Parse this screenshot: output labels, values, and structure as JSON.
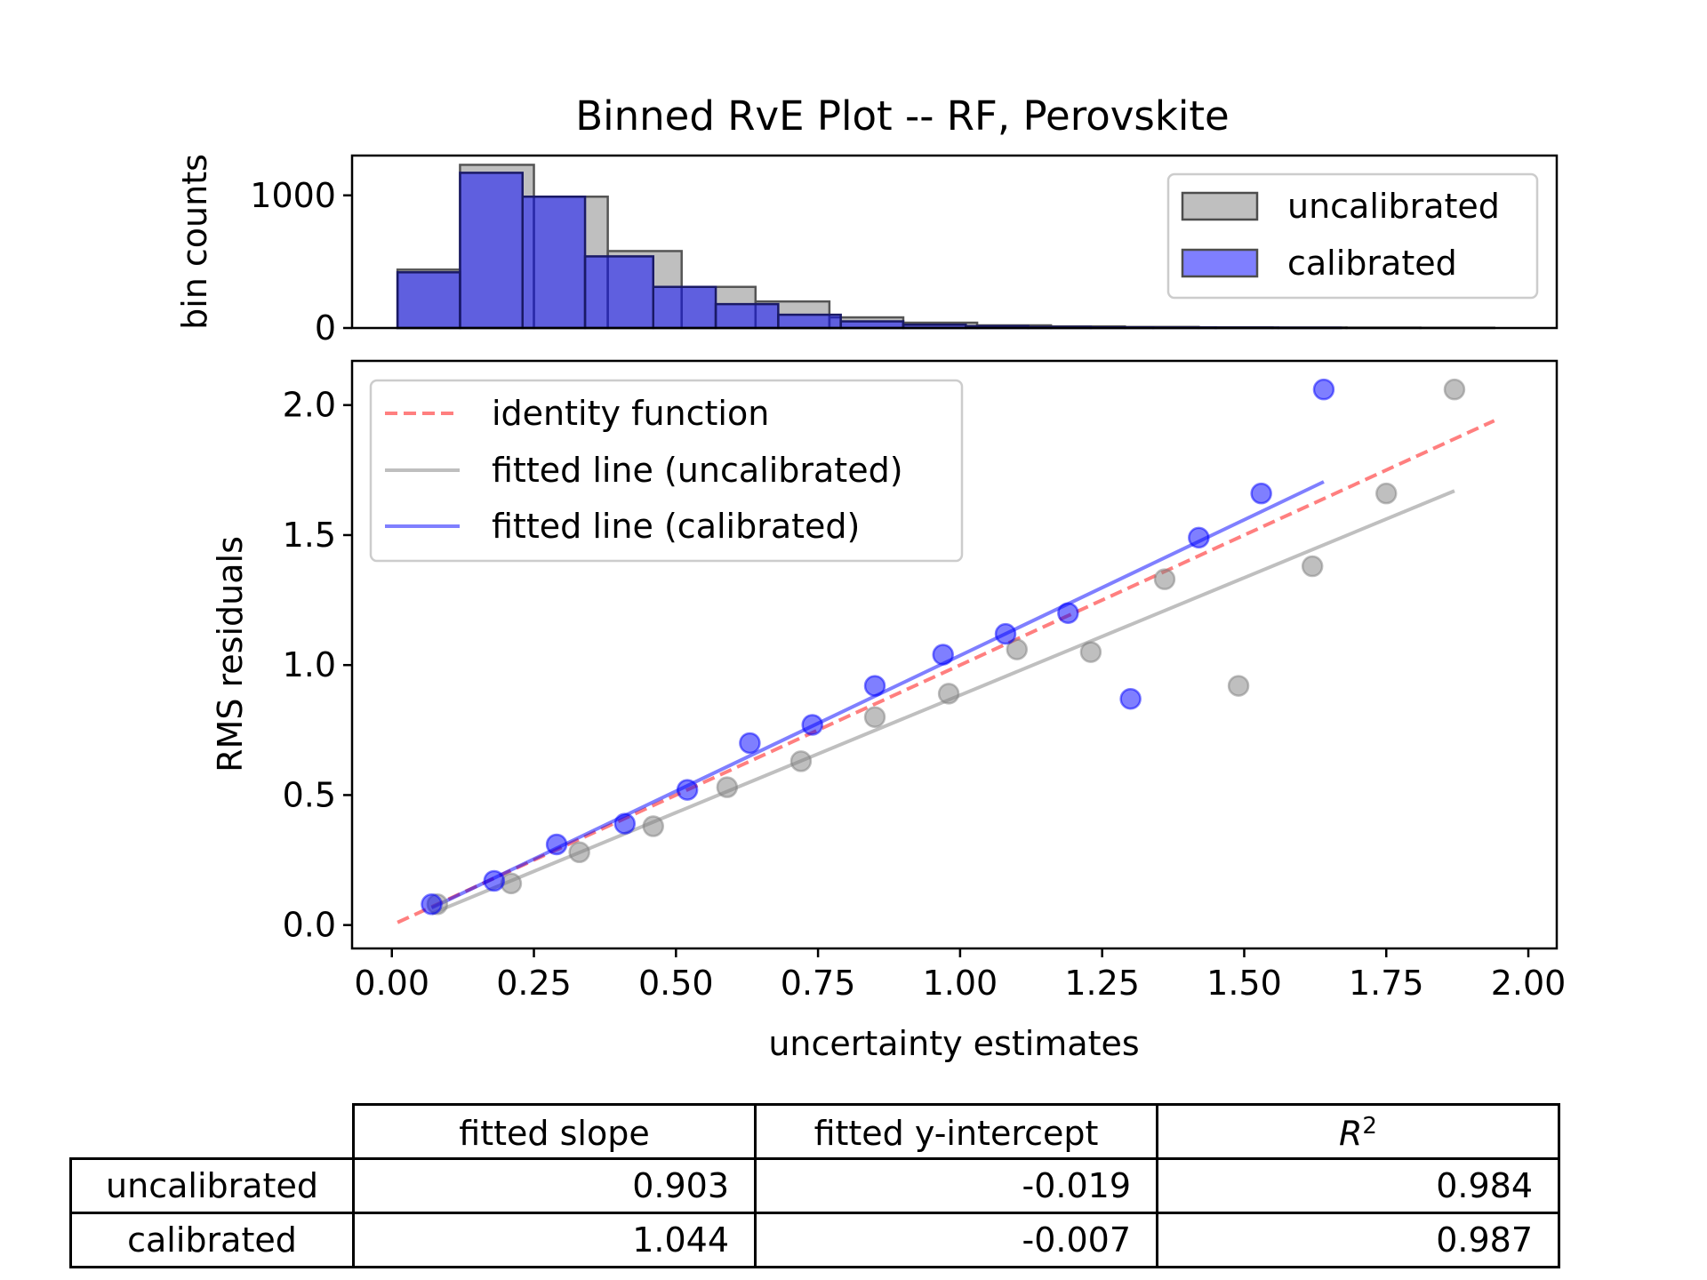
{
  "title": "Binned RvE Plot -- RF, Perovskite",
  "hist": {
    "ylabel": "bin counts",
    "yticks": [
      "0",
      "1000"
    ],
    "legend": {
      "location": "upper right",
      "entries": [
        "uncalibrated",
        "calibrated"
      ]
    }
  },
  "main": {
    "xlabel": "uncertainty estimates",
    "ylabel": "RMS residuals",
    "xticks": [
      "0.00",
      "0.25",
      "0.50",
      "0.75",
      "1.00",
      "1.25",
      "1.50",
      "1.75",
      "2.00"
    ],
    "yticks": [
      "0.0",
      "0.5",
      "1.0",
      "1.5",
      "2.0"
    ],
    "legend": {
      "location": "upper left",
      "entries": [
        "identity function",
        "fitted line (uncalibrated)",
        "fitted line (calibrated)"
      ]
    }
  },
  "table": {
    "columns": [
      "fitted slope",
      "fitted y-intercept",
      "R"
    ],
    "r2_superscript": "2",
    "rows": [
      {
        "label": "uncalibrated",
        "slope": "0.903",
        "intercept": "-0.019",
        "r2": "0.984"
      },
      {
        "label": "calibrated",
        "slope": "1.044",
        "intercept": "-0.007",
        "r2": "0.987"
      }
    ]
  },
  "colors": {
    "uncalibrated": "#808080",
    "calibrated": "#0000ff",
    "identity": "#ff0000"
  },
  "chart_data": [
    {
      "type": "bar",
      "subtype": "histogram",
      "ylabel": "bin counts",
      "ylim": [
        0,
        1300
      ],
      "series": [
        {
          "name": "uncalibrated",
          "bins": [
            [
              0.01,
              0.12,
              440
            ],
            [
              0.12,
              0.25,
              1230
            ],
            [
              0.25,
              0.38,
              990
            ],
            [
              0.38,
              0.51,
              580
            ],
            [
              0.51,
              0.64,
              310
            ],
            [
              0.64,
              0.77,
              200
            ],
            [
              0.77,
              0.9,
              80
            ],
            [
              0.9,
              1.03,
              40
            ],
            [
              1.03,
              1.16,
              20
            ],
            [
              1.16,
              1.29,
              12
            ],
            [
              1.29,
              1.42,
              8
            ],
            [
              1.42,
              1.55,
              5
            ],
            [
              1.55,
              1.68,
              4
            ],
            [
              1.68,
              1.81,
              3
            ],
            [
              1.81,
              1.94,
              2
            ]
          ]
        },
        {
          "name": "calibrated",
          "bins": [
            [
              0.01,
              0.12,
              420
            ],
            [
              0.12,
              0.23,
              1170
            ],
            [
              0.23,
              0.34,
              990
            ],
            [
              0.34,
              0.46,
              540
            ],
            [
              0.46,
              0.57,
              310
            ],
            [
              0.57,
              0.68,
              180
            ],
            [
              0.68,
              0.79,
              100
            ],
            [
              0.79,
              0.9,
              50
            ],
            [
              0.9,
              1.01,
              25
            ],
            [
              1.01,
              1.12,
              14
            ],
            [
              1.12,
              1.23,
              8
            ],
            [
              1.23,
              1.34,
              5
            ],
            [
              1.34,
              1.45,
              4
            ],
            [
              1.45,
              1.56,
              3
            ],
            [
              1.56,
              1.67,
              2
            ]
          ]
        }
      ]
    },
    {
      "type": "scatter",
      "xlabel": "uncertainty estimates",
      "ylabel": "RMS residuals",
      "xlim": [
        -0.07,
        2.05
      ],
      "ylim": [
        -0.09,
        2.17
      ],
      "series": [
        {
          "name": "uncalibrated",
          "points": [
            [
              0.08,
              0.08
            ],
            [
              0.21,
              0.16
            ],
            [
              0.33,
              0.28
            ],
            [
              0.46,
              0.38
            ],
            [
              0.59,
              0.53
            ],
            [
              0.72,
              0.63
            ],
            [
              0.85,
              0.8
            ],
            [
              0.98,
              0.89
            ],
            [
              1.1,
              1.06
            ],
            [
              1.23,
              1.05
            ],
            [
              1.36,
              1.33
            ],
            [
              1.49,
              0.92
            ],
            [
              1.62,
              1.38
            ],
            [
              1.75,
              1.66
            ],
            [
              1.87,
              2.06
            ]
          ]
        },
        {
          "name": "calibrated",
          "points": [
            [
              0.07,
              0.08
            ],
            [
              0.18,
              0.17
            ],
            [
              0.29,
              0.31
            ],
            [
              0.41,
              0.39
            ],
            [
              0.52,
              0.52
            ],
            [
              0.63,
              0.7
            ],
            [
              0.74,
              0.77
            ],
            [
              0.85,
              0.92
            ],
            [
              0.97,
              1.04
            ],
            [
              1.08,
              1.12
            ],
            [
              1.19,
              1.2
            ],
            [
              1.3,
              0.87
            ],
            [
              1.42,
              1.49
            ],
            [
              1.53,
              1.66
            ],
            [
              1.64,
              2.06
            ]
          ]
        }
      ],
      "lines": [
        {
          "name": "identity function",
          "style": "dashed",
          "x": [
            0.01,
            1.94
          ],
          "y": [
            0.01,
            1.94
          ]
        },
        {
          "name": "fitted line (uncalibrated)",
          "style": "solid",
          "x": [
            0.07,
            1.87
          ],
          "y": [
            0.044,
            1.67
          ]
        },
        {
          "name": "fitted line (calibrated)",
          "style": "solid",
          "x": [
            0.07,
            1.64
          ],
          "y": [
            0.066,
            1.705
          ]
        }
      ]
    }
  ]
}
